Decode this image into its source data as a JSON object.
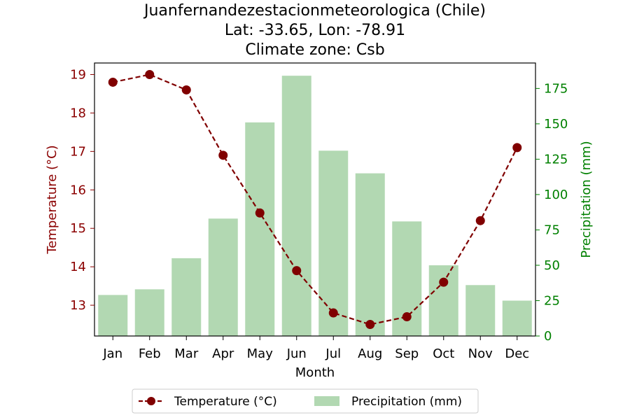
{
  "chart_data": {
    "type": "bar+line",
    "title_lines": [
      "Juanfernandezestacionmeteorologica (Chile)",
      "Lat: -33.65, Lon: -78.91",
      "Climate zone: Csb"
    ],
    "xlabel": "Month",
    "ylabel_left": "Temperature (°C)",
    "ylabel_right": "Precipitation (mm)",
    "categories": [
      "Jan",
      "Feb",
      "Mar",
      "Apr",
      "May",
      "Jun",
      "Jul",
      "Aug",
      "Sep",
      "Oct",
      "Nov",
      "Dec"
    ],
    "temperature": {
      "name": "Temperature (°C)",
      "values": [
        18.8,
        19.0,
        18.6,
        16.9,
        15.4,
        13.9,
        12.8,
        12.5,
        12.7,
        13.6,
        15.2,
        17.1
      ],
      "color": "#800000",
      "ylim": [
        12.2,
        19.3
      ],
      "ticks": [
        13,
        14,
        15,
        16,
        17,
        18,
        19
      ]
    },
    "precipitation": {
      "name": "Precipitation (mm)",
      "values": [
        29,
        33,
        55,
        83,
        151,
        184,
        131,
        115,
        81,
        50,
        36,
        25
      ],
      "color": "#b2d8b2",
      "ylim": [
        0,
        193
      ],
      "ticks": [
        0,
        25,
        50,
        75,
        100,
        125,
        150,
        175
      ]
    },
    "left_axis_color": "#8b0000",
    "right_axis_color": "#008000",
    "legend_position": "bottom-center"
  }
}
